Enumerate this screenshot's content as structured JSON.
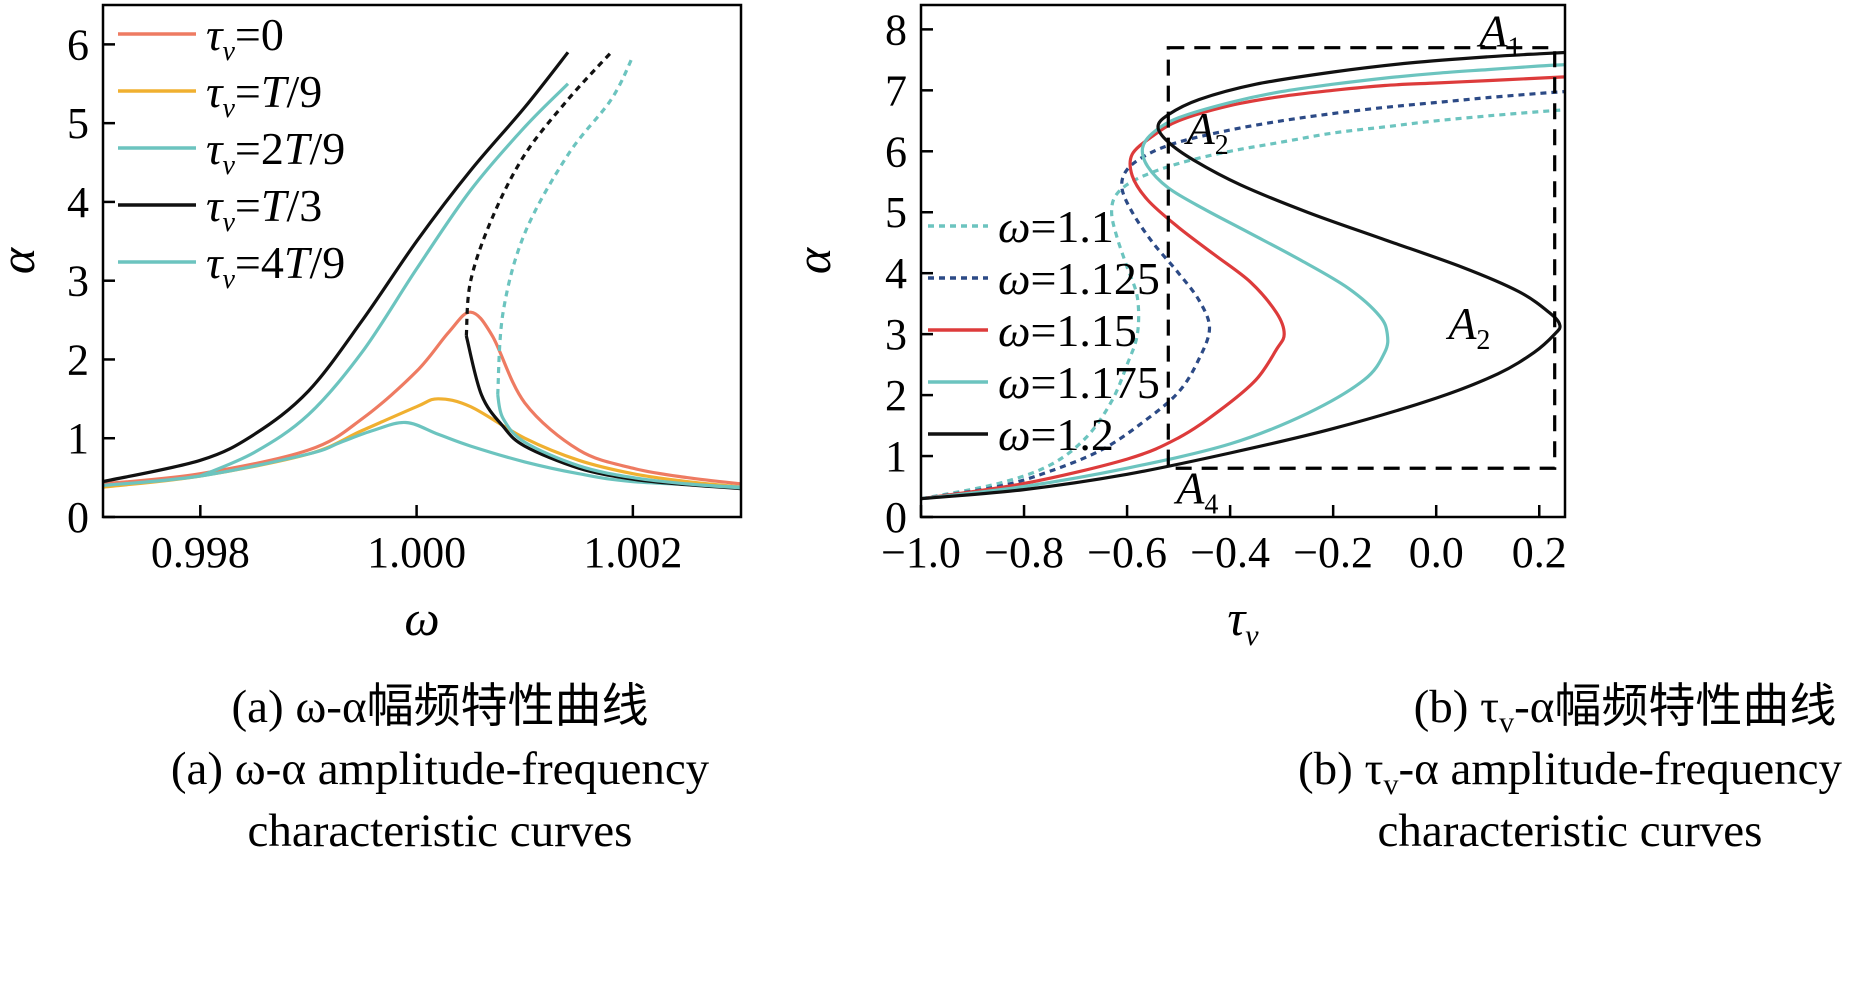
{
  "colors": {
    "tau0": "#ee7b62",
    "tauT9": "#f0b030",
    "tau2T9": "#6cc4bf",
    "tauT3": "#111111",
    "tau4T9": "#6cc4bf",
    "w1p1": "#6cc4bf",
    "w1p125": "#2c4a86",
    "w1p15": "#dd3b3b",
    "w1p175": "#6cc4bf",
    "w1p2": "#111111"
  },
  "chart_data": [
    {
      "type": "line",
      "xlim": [
        0.9971,
        1.003
      ],
      "ylim": [
        0,
        6.5
      ],
      "xticks": [
        "0.998",
        "1.000",
        "1.002"
      ],
      "xtick_values": [
        0.998,
        1.0,
        1.002
      ],
      "yticks": [
        "0",
        "1",
        "2",
        "3",
        "4",
        "5",
        "6"
      ],
      "xlabel": "ω",
      "ylabel": "α",
      "legend": {
        "placement": "top-left",
        "entries": [
          {
            "sym": "τ",
            "sub": "v",
            "rest": "=0"
          },
          {
            "sym": "τ",
            "sub": "v",
            "rest": "=",
            "it": "T",
            "tail": "/9"
          },
          {
            "sym": "τ",
            "sub": "v",
            "rest": "=2",
            "it": "T",
            "tail": "/9"
          },
          {
            "sym": "τ",
            "sub": "v",
            "rest": "=",
            "it": "T",
            "tail": "/3"
          },
          {
            "sym": "τ",
            "sub": "v",
            "rest": "=4",
            "it": "T",
            "tail": "/9"
          }
        ]
      },
      "series": [
        {
          "key": "tau0",
          "x": [
            0.9971,
            0.998,
            0.999,
            0.9995,
            1.0,
            1.0003,
            1.0005,
            1.0007,
            1.001,
            1.0015,
            1.002,
            1.0025,
            1.003
          ],
          "y": [
            0.42,
            0.55,
            0.85,
            1.25,
            1.85,
            2.35,
            2.6,
            2.3,
            1.45,
            0.85,
            0.62,
            0.5,
            0.42
          ]
        },
        {
          "key": "tauT9",
          "x": [
            0.9971,
            0.998,
            0.999,
            0.9995,
            1.0,
            1.0002,
            1.0005,
            1.001,
            1.0015,
            1.002,
            1.0025,
            1.003
          ],
          "y": [
            0.38,
            0.52,
            0.8,
            1.1,
            1.4,
            1.5,
            1.4,
            1.0,
            0.72,
            0.55,
            0.45,
            0.38
          ]
        },
        {
          "key": "tau2T9",
          "x": [
            0.9971,
            0.998,
            0.999,
            0.9993,
            0.9996,
            0.9999,
            1.0002,
            1.0005,
            1.001,
            1.0015,
            1.002,
            1.003
          ],
          "y": [
            0.4,
            0.52,
            0.8,
            0.95,
            1.1,
            1.2,
            1.05,
            0.9,
            0.7,
            0.55,
            0.45,
            0.38
          ]
        },
        {
          "key": "tauT3",
          "x": [
            0.9971,
            0.998,
            0.9985,
            0.999,
            0.9995,
            1.0,
            1.0005,
            1.001,
            1.0014
          ],
          "y": [
            0.45,
            0.72,
            1.05,
            1.6,
            2.5,
            3.5,
            4.4,
            5.2,
            5.9
          ]
        },
        {
          "key": "tauT3",
          "x": [
            1.00046,
            1.0006,
            1.0008,
            1.001,
            1.0015,
            1.002,
            1.0025,
            1.003
          ],
          "y": [
            2.3,
            1.55,
            1.15,
            0.9,
            0.62,
            0.48,
            0.41,
            0.36
          ]
        },
        {
          "key": "tauT3",
          "dash": true,
          "x": [
            1.00046,
            1.0005,
            1.0007,
            1.001,
            1.0014,
            1.0018
          ],
          "y": [
            2.3,
            3.0,
            3.8,
            4.6,
            5.3,
            5.9
          ]
        },
        {
          "key": "tau4T9",
          "x": [
            0.998,
            0.9985,
            0.999,
            0.9995,
            1.0,
            1.0005,
            1.001,
            1.0014
          ],
          "y": [
            0.52,
            0.82,
            1.3,
            2.1,
            3.15,
            4.15,
            4.95,
            5.5
          ]
        },
        {
          "key": "tau4T9",
          "x": [
            1.00075,
            1.0008,
            1.001,
            1.0015,
            1.002,
            1.0025,
            1.003
          ],
          "y": [
            1.55,
            1.25,
            0.95,
            0.65,
            0.5,
            0.42,
            0.37
          ]
        },
        {
          "key": "tau4T9",
          "dash": true,
          "x": [
            1.00075,
            1.0008,
            1.001,
            1.0014,
            1.0018,
            1.002
          ],
          "y": [
            1.55,
            2.6,
            3.6,
            4.6,
            5.3,
            5.85
          ]
        }
      ]
    },
    {
      "type": "line",
      "xlim": [
        -1.0,
        0.25
      ],
      "ylim": [
        0,
        8.4
      ],
      "xticks": [
        "−1.0",
        "−0.8",
        "−0.6",
        "−0.4",
        "−0.2",
        "0.0",
        "0.2"
      ],
      "xtick_values": [
        -1.0,
        -0.8,
        -0.6,
        -0.4,
        -0.2,
        0.0,
        0.2
      ],
      "yticks": [
        "0",
        "1",
        "2",
        "3",
        "4",
        "5",
        "6",
        "7",
        "8"
      ],
      "xlabel": {
        "sym": "τ",
        "sub": "v"
      },
      "ylabel": "α",
      "legend": {
        "placement": "middle-left",
        "entries": [
          "ω=1.1",
          "ω=1.125",
          "ω=1.15",
          "ω=1.175",
          "ω=1.2"
        ]
      },
      "annotations": [
        {
          "base": "A",
          "sub": "1",
          "x": 0.2,
          "y": 7.95
        },
        {
          "base": "A",
          "sub": "2",
          "x": -0.5,
          "y": 6.35
        },
        {
          "base": "A",
          "sub": "2",
          "x": 0.14,
          "y": 3.15
        },
        {
          "base": "A",
          "sub": "4",
          "x": -0.52,
          "y": 0.45
        }
      ],
      "dashed_box": {
        "x": [
          -0.52,
          0.23
        ],
        "y": [
          0.8,
          7.7
        ]
      },
      "series": [
        {
          "key": "w1p1",
          "dash": true,
          "x": [
            -1.0,
            -0.85,
            -0.75,
            -0.68,
            -0.63,
            -0.6,
            -0.58,
            -0.58,
            -0.6,
            -0.62,
            -0.63,
            -0.62,
            -0.58,
            -0.5,
            -0.4,
            -0.3,
            -0.2,
            -0.1,
            0.0,
            0.1,
            0.2,
            0.25
          ],
          "y": [
            0.3,
            0.55,
            0.85,
            1.3,
            1.9,
            2.5,
            3.0,
            3.6,
            4.1,
            4.6,
            5.0,
            5.3,
            5.55,
            5.8,
            6.0,
            6.15,
            6.3,
            6.4,
            6.5,
            6.58,
            6.65,
            6.68
          ]
        },
        {
          "key": "w1p125",
          "dash": true,
          "x": [
            -1.0,
            -0.85,
            -0.75,
            -0.65,
            -0.57,
            -0.5,
            -0.46,
            -0.44,
            -0.46,
            -0.5,
            -0.55,
            -0.59,
            -0.61,
            -0.6,
            -0.56,
            -0.5,
            -0.4,
            -0.3,
            -0.2,
            -0.1,
            0.0,
            0.1,
            0.2,
            0.25
          ],
          "y": [
            0.3,
            0.5,
            0.75,
            1.1,
            1.55,
            2.05,
            2.6,
            3.1,
            3.55,
            4.0,
            4.5,
            5.0,
            5.4,
            5.7,
            5.95,
            6.15,
            6.35,
            6.5,
            6.62,
            6.72,
            6.8,
            6.88,
            6.95,
            6.98
          ]
        },
        {
          "key": "w1p15",
          "x": [
            -1.0,
            -0.8,
            -0.6,
            -0.5,
            -0.42,
            -0.35,
            -0.31,
            -0.295,
            -0.31,
            -0.36,
            -0.43,
            -0.5,
            -0.56,
            -0.59,
            -0.59,
            -0.55,
            -0.5,
            -0.4,
            -0.3,
            -0.2,
            -0.1,
            0.0,
            0.1,
            0.2,
            0.25
          ],
          "y": [
            0.3,
            0.55,
            0.95,
            1.3,
            1.75,
            2.25,
            2.75,
            3.0,
            3.35,
            3.85,
            4.3,
            4.75,
            5.2,
            5.6,
            5.95,
            6.25,
            6.5,
            6.75,
            6.9,
            7.0,
            7.08,
            7.12,
            7.16,
            7.2,
            7.22
          ]
        },
        {
          "key": "w1p175",
          "x": [
            -1.0,
            -0.8,
            -0.6,
            -0.4,
            -0.25,
            -0.14,
            -0.1,
            -0.095,
            -0.11,
            -0.17,
            -0.26,
            -0.36,
            -0.45,
            -0.52,
            -0.56,
            -0.57,
            -0.55,
            -0.5,
            -0.4,
            -0.3,
            -0.2,
            -0.1,
            0.0,
            0.1,
            0.2,
            0.25
          ],
          "y": [
            0.3,
            0.5,
            0.8,
            1.2,
            1.7,
            2.25,
            2.7,
            3.0,
            3.3,
            3.75,
            4.2,
            4.65,
            5.05,
            5.4,
            5.75,
            6.05,
            6.3,
            6.55,
            6.8,
            6.98,
            7.1,
            7.2,
            7.28,
            7.34,
            7.4,
            7.42
          ]
        },
        {
          "key": "w1p2",
          "x": [
            -1.0,
            -0.8,
            -0.6,
            -0.4,
            -0.2,
            0.0,
            0.12,
            0.19,
            0.23,
            0.24,
            0.22,
            0.16,
            0.05,
            -0.1,
            -0.25,
            -0.38,
            -0.47,
            -0.52,
            -0.54,
            -0.52,
            -0.46,
            -0.35,
            -0.2,
            -0.05,
            0.1,
            0.2,
            0.25
          ],
          "y": [
            0.3,
            0.45,
            0.7,
            1.05,
            1.45,
            1.95,
            2.35,
            2.7,
            3.0,
            3.15,
            3.35,
            3.7,
            4.1,
            4.55,
            5.0,
            5.45,
            5.85,
            6.15,
            6.4,
            6.6,
            6.85,
            7.1,
            7.3,
            7.45,
            7.55,
            7.6,
            7.62
          ]
        }
      ]
    }
  ],
  "captions": {
    "a_cn": "(a) ω-α幅频特性曲线",
    "a_en1": "(a) ω-α amplitude-frequency",
    "a_en2": "characteristic curves",
    "b_cn": "(b) τ",
    "b_cn_sub": "v",
    "b_cn_tail": "-α幅频特性曲线",
    "b_en1": "(b) τ",
    "b_en1_sub": "v",
    "b_en1_tail": "-α amplitude-frequency",
    "b_en2": "characteristic curves"
  }
}
